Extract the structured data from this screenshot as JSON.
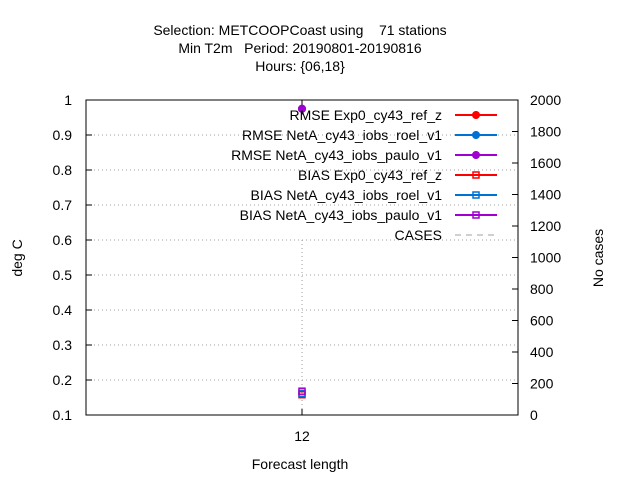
{
  "chart_data": {
    "type": "line",
    "title_lines": [
      "Selection: METCOOPCoast using    71 stations",
      "Min T2m   Period: 20190801-20190816",
      "Hours: {06,18}"
    ],
    "xlabel": "Forecast length",
    "ylabel": "deg C",
    "y2label": "No cases",
    "categories": [
      "12"
    ],
    "ylim": [
      0.1,
      1.0
    ],
    "y_ticks": [
      "0.1",
      "0.2",
      "0.3",
      "0.4",
      "0.5",
      "0.6",
      "0.7",
      "0.8",
      "0.9",
      "1"
    ],
    "y2lim": [
      0,
      2000
    ],
    "y2_ticks": [
      "0",
      "200",
      "400",
      "600",
      "800",
      "1000",
      "1200",
      "1400",
      "1600",
      "1800",
      "2000"
    ],
    "grid": true,
    "legend_position": "top-right",
    "series": [
      {
        "name": "RMSE Exp0_cy43_ref_z",
        "values": [
          0.975
        ],
        "color": "#ff0000",
        "marker": "filled-circle",
        "axis": "y"
      },
      {
        "name": "RMSE NetA_cy43_iobs_roel_v1",
        "values": [
          0.975
        ],
        "color": "#0072d4",
        "marker": "filled-circle",
        "axis": "y"
      },
      {
        "name": "RMSE NetA_cy43_iobs_paulo_v1",
        "values": [
          0.975
        ],
        "color": "#a000d0",
        "marker": "filled-circle",
        "axis": "y"
      },
      {
        "name": "BIAS Exp0_cy43_ref_z",
        "values": [
          0.158
        ],
        "color": "#ff0000",
        "marker": "open-square",
        "axis": "y"
      },
      {
        "name": "BIAS NetA_cy43_iobs_roel_v1",
        "values": [
          0.162
        ],
        "color": "#0072d4",
        "marker": "open-square",
        "axis": "y"
      },
      {
        "name": "BIAS NetA_cy43_iobs_paulo_v1",
        "values": [
          0.168
        ],
        "color": "#a000d0",
        "marker": "open-square",
        "axis": "y"
      },
      {
        "name": "CASES",
        "values": [
          1090
        ],
        "color": "#a0a0a0",
        "marker": "none",
        "axis": "y2"
      }
    ]
  }
}
